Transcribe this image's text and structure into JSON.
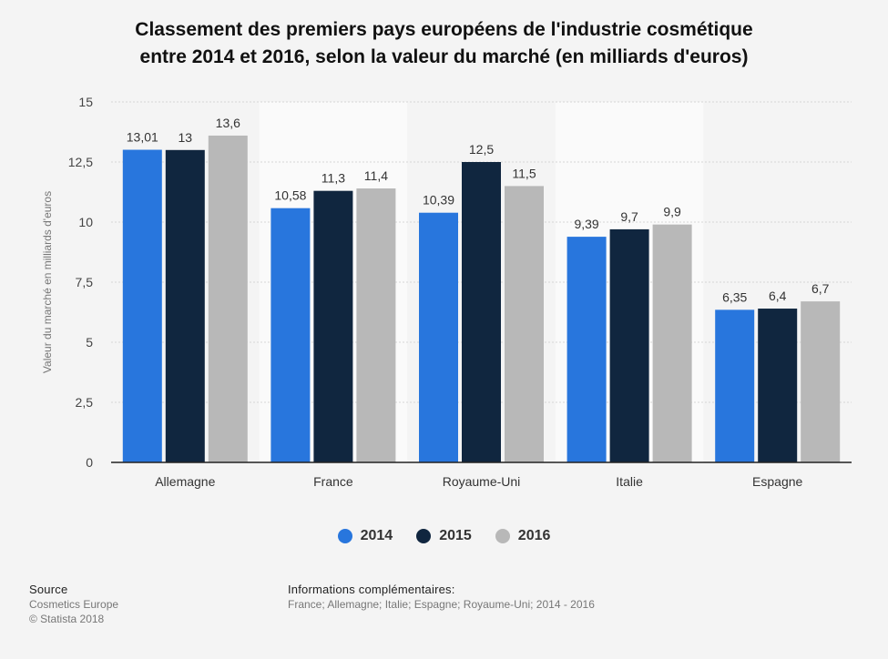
{
  "chart_data": {
    "type": "bar",
    "title_line1": "Classement des premiers pays européens de l'industrie cosmétique",
    "title_line2": "entre 2014 et 2016, selon la valeur du marché (en milliards d'euros)",
    "ylabel": "Valeur du marché en milliards d'euros",
    "xlabel": "",
    "ylim": [
      0,
      15
    ],
    "yticks": [
      0,
      2.5,
      5,
      7.5,
      10,
      12.5,
      15
    ],
    "ytick_labels": [
      "0",
      "2,5",
      "5",
      "7,5",
      "10",
      "12,5",
      "15"
    ],
    "categories": [
      "Allemagne",
      "France",
      "Royaume-Uni",
      "Italie",
      "Espagne"
    ],
    "series": [
      {
        "name": "2014",
        "color": "#2876dd",
        "values": [
          13.01,
          10.58,
          10.39,
          9.39,
          6.35
        ],
        "labels": [
          "13,01",
          "10,58",
          "10,39",
          "9,39",
          "6,35"
        ]
      },
      {
        "name": "2015",
        "color": "#10263f",
        "values": [
          13,
          11.3,
          12.5,
          9.7,
          6.4
        ],
        "labels": [
          "13",
          "11,3",
          "12,5",
          "9,7",
          "6,4"
        ]
      },
      {
        "name": "2016",
        "color": "#b8b8b8",
        "values": [
          13.6,
          11.4,
          11.5,
          9.9,
          6.7
        ],
        "labels": [
          "13,6",
          "11,4",
          "11,5",
          "9,9",
          "6,7"
        ]
      }
    ],
    "grid": true,
    "legend_position": "bottom"
  },
  "footer": {
    "source_heading": "Source",
    "source_lines": [
      "Cosmetics Europe",
      "© Statista 2018"
    ],
    "info_heading": "Informations complémentaires:",
    "info_text": "France; Allemagne; Italie; Espagne; Royaume-Uni; 2014 - 2016"
  }
}
